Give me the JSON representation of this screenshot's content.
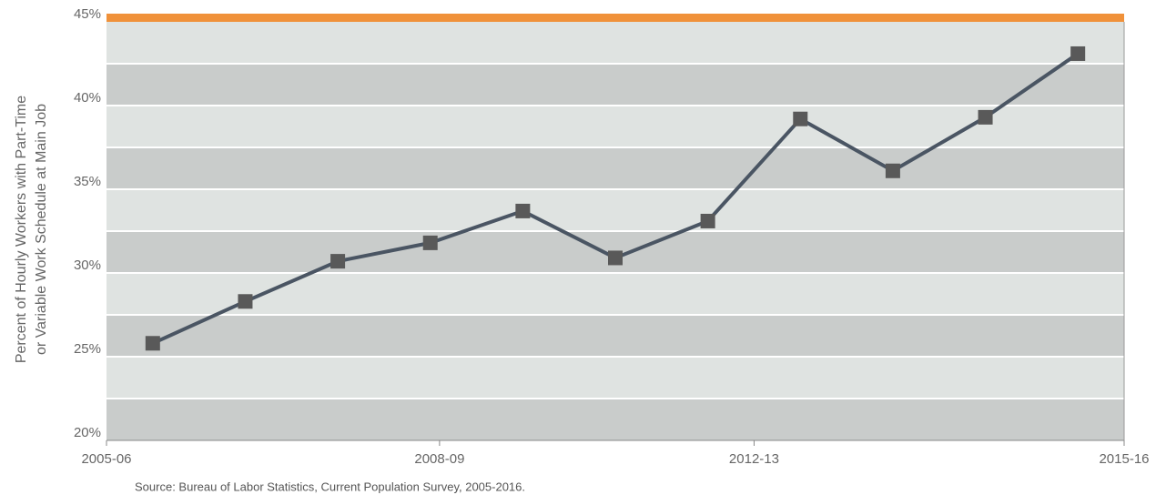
{
  "chart_data": {
    "type": "line",
    "y_axis_label": [
      "Percent of Hourly Workers with Part-Time",
      "or Variable Work Schedule at Main Job"
    ],
    "source": "Source: Bureau of Labor Statistics, Current Population Survey, 2005-2016.",
    "x": [
      2005.5,
      2006.5,
      2007.5,
      2008.5,
      2009.5,
      2010.5,
      2011.5,
      2012.5,
      2013.5,
      2014.5,
      2015.5
    ],
    "values": [
      25.8,
      28.3,
      30.7,
      31.8,
      33.7,
      30.9,
      33.1,
      39.2,
      36.1,
      39.3,
      43.1
    ],
    "color": "#4a5563",
    "marker_color": "#595959",
    "xlim": [
      2005,
      2016
    ],
    "xticks": [
      {
        "value": 2005,
        "label": "2005-06"
      },
      {
        "value": 2008.6,
        "label": "2008-09"
      },
      {
        "value": 2012,
        "label": "2012-13"
      },
      {
        "value": 2016,
        "label": "2015-16"
      }
    ],
    "ylim": [
      20,
      45
    ],
    "yticks": [
      {
        "value": 20,
        "label": "20%"
      },
      {
        "value": 25,
        "label": "25%"
      },
      {
        "value": 30,
        "label": "30%"
      },
      {
        "value": 35,
        "label": "35%"
      },
      {
        "value": 40,
        "label": "40%"
      },
      {
        "value": 45,
        "label": "45%"
      }
    ],
    "grid": true
  }
}
